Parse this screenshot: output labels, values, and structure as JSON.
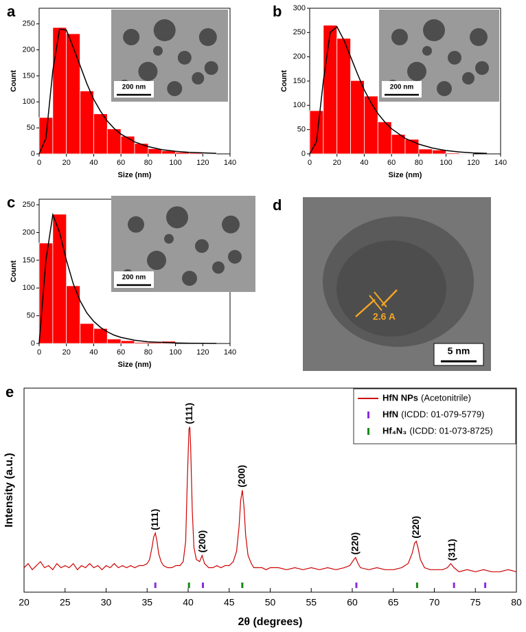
{
  "chart_data": [
    {
      "type": "histogram",
      "panel": "a",
      "bins": [
        0,
        10,
        20,
        30,
        40,
        50,
        60,
        70,
        80,
        90,
        100,
        110,
        120,
        130,
        140
      ],
      "counts": [
        70,
        243,
        231,
        121,
        77,
        48,
        34,
        20,
        10,
        6,
        3,
        2,
        1,
        0
      ],
      "color": "#ff0000",
      "fit": {
        "x": [
          0,
          5,
          10,
          15,
          20,
          25,
          30,
          35,
          40,
          45,
          50,
          55,
          60,
          70,
          80,
          90,
          100,
          110,
          120,
          130
        ],
        "values": [
          0,
          30,
          160,
          240,
          238,
          205,
          170,
          135,
          105,
          82,
          63,
          49,
          38,
          23,
          14,
          8,
          5,
          3,
          2,
          1
        ],
        "color": "#000000"
      },
      "xlim": [
        0,
        140
      ],
      "ylim": [
        0,
        280
      ],
      "xticks": [
        0,
        20,
        40,
        60,
        80,
        100,
        120,
        140
      ],
      "yticks": [
        0,
        50,
        100,
        150,
        200,
        250
      ],
      "xlabel": "Size (nm)",
      "ylabel": "Count",
      "inset_scale_bar": "200 nm"
    },
    {
      "type": "histogram",
      "panel": "b",
      "bins": [
        0,
        10,
        20,
        30,
        40,
        50,
        60,
        70,
        80,
        90,
        100,
        110,
        120,
        130,
        140
      ],
      "counts": [
        89,
        265,
        238,
        151,
        119,
        66,
        40,
        30,
        10,
        8,
        2,
        1,
        0,
        0
      ],
      "color": "#ff0000",
      "fit": {
        "x": [
          0,
          5,
          10,
          15,
          20,
          25,
          30,
          35,
          40,
          45,
          50,
          55,
          60,
          70,
          80,
          90,
          100,
          110,
          120,
          130
        ],
        "values": [
          0,
          25,
          150,
          250,
          262,
          235,
          200,
          165,
          132,
          105,
          83,
          66,
          52,
          32,
          20,
          12,
          7,
          4,
          2,
          1
        ],
        "color": "#000000"
      },
      "xlim": [
        0,
        140
      ],
      "ylim": [
        0,
        300
      ],
      "xticks": [
        0,
        20,
        40,
        60,
        80,
        100,
        120,
        140
      ],
      "yticks": [
        0,
        50,
        100,
        150,
        200,
        250,
        300
      ],
      "xlabel": "Size (nm)",
      "ylabel": "Count",
      "inset_scale_bar": "200 nm"
    },
    {
      "type": "histogram",
      "panel": "c",
      "bins": [
        0,
        10,
        20,
        30,
        40,
        50,
        60,
        70,
        80,
        90,
        100,
        110,
        120,
        130,
        140
      ],
      "counts": [
        181,
        233,
        104,
        36,
        27,
        8,
        5,
        2,
        2,
        4,
        0,
        0,
        0,
        0
      ],
      "color": "#ff0000",
      "fit": {
        "x": [
          0,
          5,
          10,
          15,
          20,
          25,
          30,
          35,
          40,
          45,
          50,
          55,
          60,
          70,
          80,
          90,
          100,
          110,
          120,
          130
        ],
        "values": [
          0,
          150,
          232,
          200,
          150,
          108,
          77,
          55,
          40,
          29,
          21,
          15,
          11,
          6,
          3,
          2,
          1,
          0.5,
          0.3,
          0.1
        ],
        "color": "#000000"
      },
      "xlim": [
        0,
        140
      ],
      "ylim": [
        0,
        260
      ],
      "xticks": [
        0,
        20,
        40,
        60,
        80,
        100,
        120,
        140
      ],
      "yticks": [
        0,
        50,
        100,
        150,
        200,
        250
      ],
      "xlabel": "Size (nm)",
      "ylabel": "Count",
      "inset_scale_bar": "200 nm"
    },
    {
      "type": "line",
      "panel": "e",
      "xlabel": "2θ (degrees)",
      "ylabel": "Intensity (a.u.)",
      "xlim": [
        20,
        80
      ],
      "ylim": [
        0,
        100
      ],
      "xticks": [
        20,
        25,
        30,
        35,
        40,
        45,
        50,
        55,
        60,
        65,
        70,
        75,
        80
      ],
      "legend": "upper right",
      "series": [
        {
          "name": "HfN NPs",
          "detail": "(Acetonitrile)",
          "color": "#cc0000",
          "x": [
            20,
            20.5,
            21,
            21.5,
            22,
            22.5,
            23,
            23.5,
            24,
            24.5,
            25,
            25.5,
            26,
            26.5,
            27,
            27.5,
            28,
            28.5,
            29,
            29.5,
            30,
            30.5,
            31,
            31.5,
            32,
            32.5,
            33,
            33.5,
            34,
            34.5,
            35,
            35.3,
            35.6,
            35.8,
            36.0,
            36.2,
            36.4,
            36.7,
            37,
            37.5,
            38,
            38.5,
            39,
            39.4,
            39.7,
            39.9,
            40.1,
            40.2,
            40.3,
            40.5,
            40.7,
            41,
            41.4,
            41.7,
            42,
            42.5,
            43,
            43.5,
            44,
            44.5,
            45,
            45.5,
            45.9,
            46.2,
            46.4,
            46.6,
            46.8,
            47,
            47.3,
            47.7,
            48,
            48.5,
            49,
            49.5,
            50,
            51,
            52,
            53,
            54,
            55,
            56,
            57,
            58,
            59,
            59.7,
            60.2,
            60.4,
            60.7,
            61,
            62,
            63,
            64,
            65,
            66,
            66.8,
            67.3,
            67.6,
            67.8,
            68.0,
            68.3,
            68.8,
            69.5,
            70,
            71,
            71.6,
            72,
            72.4,
            73,
            74,
            75,
            76,
            77,
            78,
            79,
            80
          ],
          "values": [
            12,
            14,
            11,
            13,
            15,
            12,
            13,
            11,
            14,
            12,
            13,
            12,
            14,
            11,
            13,
            12,
            14,
            12,
            13,
            11,
            13,
            12,
            14,
            12,
            13,
            12,
            13,
            12,
            13,
            13,
            14,
            16,
            22,
            27,
            29,
            25,
            19,
            15,
            13,
            12,
            12,
            13,
            13,
            15,
            25,
            55,
            80,
            81,
            72,
            40,
            22,
            16,
            15,
            18,
            14,
            12,
            12,
            13,
            12,
            13,
            13,
            15,
            20,
            32,
            45,
            50,
            42,
            28,
            18,
            14,
            12,
            12,
            12,
            11,
            12,
            12,
            11,
            12,
            11,
            12,
            11,
            12,
            11,
            12,
            13,
            16,
            17,
            14,
            12,
            11,
            12,
            11,
            11,
            12,
            14,
            19,
            24,
            25,
            22,
            16,
            12,
            11,
            11,
            11,
            12,
            14,
            12,
            10,
            11,
            10,
            11,
            10,
            10,
            11,
            10
          ]
        }
      ],
      "reference_series": [
        {
          "name": "HfN",
          "detail": "(ICDD: 01-079-5779)",
          "color": "#8a2be2",
          "positions": [
            36.0,
            41.8,
            60.5,
            72.4,
            76.2
          ]
        },
        {
          "name": "Hf₄N₃",
          "detail": "(ICDD: 01-073-8725)",
          "color": "#138a13",
          "positions": [
            40.1,
            46.6,
            67.9
          ]
        }
      ],
      "peak_labels": [
        {
          "x": 36.0,
          "text": "(111)",
          "color": "#8a2be2"
        },
        {
          "x": 40.2,
          "text": "(111)",
          "color": "#138a13"
        },
        {
          "x": 41.8,
          "text": "(200)",
          "color": "#8a2be2"
        },
        {
          "x": 46.6,
          "text": "(200)",
          "color": "#138a13"
        },
        {
          "x": 60.4,
          "text": "(220)",
          "color": "#8a2be2"
        },
        {
          "x": 67.8,
          "text": "(220)",
          "color": "#138a13"
        },
        {
          "x": 72.2,
          "text": "(311)",
          "color": "#8a2be2"
        }
      ]
    }
  ],
  "image_panel": {
    "panel": "d",
    "annotation": "2.6 A",
    "scale_bar": "5 nm"
  }
}
